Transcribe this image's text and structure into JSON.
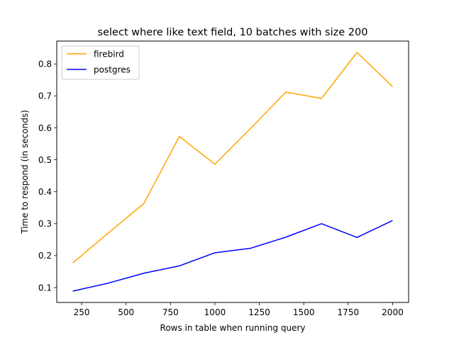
{
  "chart_data": {
    "type": "line",
    "title": "select where like text field, 10 batches with size 200",
    "xlabel": "Rows in table when running query",
    "ylabel": "Time to respond (in seconds)",
    "xlim": [
      110,
      2090
    ],
    "ylim": [
      0.0535,
      0.8715
    ],
    "xticks": [
      250,
      500,
      750,
      1000,
      1250,
      1500,
      1750,
      2000
    ],
    "yticks": [
      0.1,
      0.2,
      0.3,
      0.4,
      0.5,
      0.6,
      0.7,
      0.8
    ],
    "grid": false,
    "legend": "top-left",
    "x": [
      200,
      400,
      600,
      800,
      1000,
      1200,
      1400,
      1600,
      1800,
      2000
    ],
    "series": [
      {
        "name": "firebird",
        "color": "#ffa500",
        "values": [
          0.177,
          0.271,
          0.363,
          0.573,
          0.486,
          0.598,
          0.712,
          0.692,
          0.836,
          0.729
        ]
      },
      {
        "name": "postgres",
        "color": "#0000ff",
        "values": [
          0.089,
          0.114,
          0.145,
          0.168,
          0.209,
          0.223,
          0.258,
          0.3,
          0.257,
          0.31
        ]
      }
    ]
  }
}
